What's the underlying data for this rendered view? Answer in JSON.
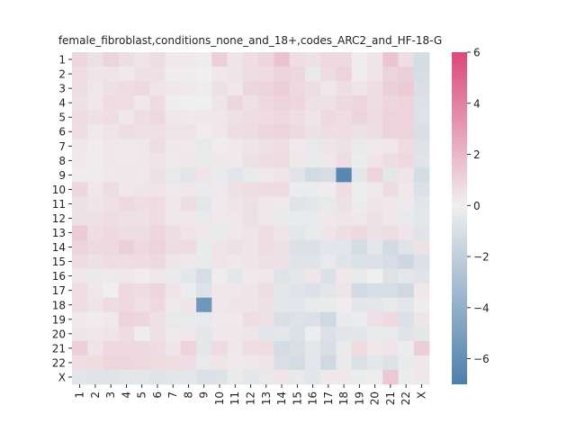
{
  "chart_data": {
    "type": "heatmap",
    "title": "female_fibroblast,conditions_none_and_18+,codes_ARC2_and_HF-18-G",
    "xlabel": "",
    "ylabel": "",
    "x_categories": [
      "1",
      "2",
      "3",
      "4",
      "5",
      "6",
      "7",
      "8",
      "9",
      "10",
      "11",
      "12",
      "13",
      "14",
      "15",
      "16",
      "17",
      "18",
      "19",
      "20",
      "21",
      "22",
      "X"
    ],
    "y_categories": [
      "1",
      "2",
      "3",
      "4",
      "5",
      "6",
      "7",
      "8",
      "9",
      "10",
      "11",
      "12",
      "13",
      "14",
      "15",
      "16",
      "17",
      "18",
      "19",
      "20",
      "21",
      "22",
      "X"
    ],
    "colorbar": {
      "vmin": -7,
      "vmax": 6,
      "ticks": [
        6,
        4,
        2,
        0,
        -2,
        -4,
        -6
      ],
      "tick_labels": [
        "6",
        "4",
        "2",
        "0",
        "−2",
        "−4",
        "−6"
      ],
      "colors": {
        "low": "#4c7fac",
        "mid": "#f0efef",
        "high": "#dc4877"
      }
    },
    "values": [
      [
        0.9,
        0.5,
        1.0,
        0.6,
        0.4,
        0.6,
        0.2,
        0.2,
        0.1,
        1.1,
        0.4,
        0.6,
        0.9,
        1.6,
        0.6,
        0.5,
        0.8,
        0.8,
        0.1,
        0.4,
        1.5,
        0.6,
        -1.2
      ],
      [
        0.6,
        0.4,
        0.4,
        0.2,
        0.5,
        0.5,
        0.1,
        0.1,
        0.0,
        0.3,
        0.4,
        0.6,
        0.7,
        1.0,
        0.9,
        -0.4,
        0.7,
        1.0,
        0.1,
        0.4,
        1.0,
        1.1,
        -1.1
      ],
      [
        0.6,
        0.3,
        0.5,
        0.7,
        0.8,
        0.4,
        0.3,
        0.2,
        0.1,
        0.5,
        0.3,
        0.9,
        1.0,
        1.2,
        0.8,
        0.6,
        0.3,
        0.6,
        0.4,
        0.6,
        1.1,
        1.3,
        -1.0
      ],
      [
        0.5,
        0.3,
        0.7,
        0.6,
        0.3,
        0.7,
        0.1,
        0.0,
        0.0,
        0.4,
        0.9,
        0.5,
        0.8,
        1.0,
        0.9,
        0.5,
        0.5,
        0.8,
        0.9,
        0.6,
        0.9,
        1.0,
        -0.9
      ],
      [
        0.7,
        0.5,
        0.6,
        0.3,
        0.6,
        0.8,
        0.3,
        0.2,
        0.3,
        0.3,
        0.5,
        0.6,
        0.7,
        0.8,
        0.6,
        0.4,
        0.8,
        0.6,
        1.0,
        0.7,
        1.0,
        1.0,
        -0.8
      ],
      [
        0.6,
        0.2,
        0.4,
        0.6,
        0.5,
        0.5,
        0.4,
        0.4,
        0.1,
        0.3,
        0.6,
        0.7,
        0.9,
        1.0,
        0.8,
        0.5,
        0.6,
        0.6,
        0.5,
        0.6,
        1.0,
        1.0,
        -1.0
      ],
      [
        0.3,
        0.1,
        0.3,
        0.2,
        0.3,
        0.6,
        0.3,
        0.2,
        -0.4,
        0.1,
        0.2,
        0.4,
        0.5,
        0.6,
        0.2,
        -0.4,
        0.4,
        0.5,
        -0.3,
        0.2,
        0.3,
        0.7,
        -0.8
      ],
      [
        0.2,
        0.1,
        0.3,
        0.2,
        0.3,
        0.4,
        0.2,
        0.3,
        -0.3,
        0.3,
        0.2,
        0.5,
        0.6,
        0.7,
        0.3,
        -0.3,
        0.3,
        0.6,
        -0.2,
        0.4,
        0.6,
        0.8,
        -0.7
      ],
      [
        0.1,
        0.1,
        0.2,
        0.3,
        0.2,
        0.5,
        -0.4,
        -0.6,
        0.4,
        -0.3,
        -0.6,
        -0.3,
        0.2,
        0.4,
        -0.7,
        -1.3,
        -1.1,
        -6.5,
        -0.5,
        1.0,
        -0.5,
        0.4,
        -1.2
      ],
      [
        0.9,
        0.3,
        0.6,
        0.3,
        0.4,
        0.4,
        0.2,
        0.3,
        -0.3,
        0.2,
        0.5,
        0.6,
        0.7,
        0.7,
        -0.2,
        -0.2,
        0.1,
        0.6,
        -0.1,
        0.2,
        0.7,
        0.3,
        -0.9
      ],
      [
        0.5,
        0.4,
        0.5,
        0.8,
        0.6,
        0.7,
        0.3,
        0.6,
        -0.5,
        0.2,
        0.4,
        0.5,
        0.3,
        0.2,
        -0.7,
        -0.5,
        -0.4,
        0.5,
        -0.2,
        0.4,
        0.3,
        0.2,
        -0.6
      ],
      [
        0.5,
        0.5,
        0.6,
        0.5,
        0.5,
        0.7,
        0.3,
        0.3,
        -0.4,
        0.2,
        0.3,
        0.5,
        0.3,
        -0.3,
        -0.3,
        -0.4,
        0.3,
        0.4,
        0.3,
        0.5,
        0.3,
        -0.4,
        -0.5
      ],
      [
        1.3,
        0.6,
        0.8,
        0.6,
        0.6,
        0.9,
        0.6,
        0.4,
        0.3,
        -0.3,
        0.3,
        0.4,
        0.6,
        0.4,
        -0.5,
        -0.3,
        0.4,
        0.6,
        0.8,
        0.5,
        0.6,
        0.4,
        -0.7
      ],
      [
        1.0,
        0.8,
        0.8,
        1.1,
        0.8,
        1.0,
        0.7,
        0.7,
        -0.3,
        0.4,
        0.5,
        0.4,
        0.6,
        0.5,
        -0.9,
        -0.9,
        -0.6,
        -0.6,
        -1.2,
        -0.5,
        -1.3,
        -0.7,
        0.5
      ],
      [
        0.7,
        0.5,
        0.7,
        0.6,
        0.7,
        0.8,
        0.4,
        0.3,
        -0.4,
        0.4,
        0.3,
        0.4,
        0.5,
        0.5,
        -0.7,
        -0.7,
        -0.4,
        -0.7,
        -0.9,
        -0.9,
        -1.1,
        -1.5,
        -0.9
      ],
      [
        0.3,
        -0.3,
        0.2,
        0.3,
        0.1,
        0.3,
        -0.3,
        -0.5,
        -1.1,
        0.1,
        -0.5,
        0.2,
        0.3,
        -0.7,
        -0.5,
        0.4,
        -0.9,
        0.3,
        -0.4,
        0.0,
        -0.8,
        -0.5,
        -0.7
      ],
      [
        0.6,
        0.3,
        0.0,
        0.8,
        0.7,
        0.9,
        0.4,
        -0.2,
        -0.8,
        0.3,
        0.3,
        0.4,
        0.6,
        -0.5,
        -0.7,
        -0.9,
        -0.6,
        0.4,
        -1.3,
        -1.1,
        -1.1,
        -1.4,
        0.3
      ],
      [
        0.6,
        0.4,
        0.7,
        0.8,
        0.5,
        0.8,
        0.2,
        0.4,
        -5.5,
        0.3,
        0.4,
        0.4,
        0.5,
        -0.5,
        -0.6,
        -0.3,
        -0.3,
        0.1,
        -0.6,
        -0.5,
        -0.4,
        -0.6,
        0.1
      ],
      [
        0.2,
        0.1,
        0.2,
        1.0,
        0.9,
        0.5,
        -0.4,
        -0.4,
        -0.4,
        0.2,
        0.2,
        0.6,
        0.5,
        -1.0,
        -0.8,
        -0.9,
        -1.4,
        -0.3,
        -0.2,
        0.5,
        0.8,
        -0.9,
        0.4
      ],
      [
        0.4,
        0.3,
        0.4,
        0.7,
        0.1,
        0.5,
        0.2,
        0.3,
        -0.5,
        0.3,
        0.3,
        0.4,
        -0.6,
        -0.5,
        -0.9,
        -0.1,
        -0.9,
        -0.6,
        -0.6,
        -0.3,
        -0.4,
        -0.7,
        -0.5
      ],
      [
        1.1,
        0.4,
        0.8,
        0.8,
        0.8,
        0.7,
        0.4,
        1.0,
        -0.5,
        0.7,
        0.3,
        0.6,
        0.6,
        -1.2,
        -1.0,
        -0.5,
        -1.0,
        -0.3,
        0.7,
        0.3,
        0.4,
        -0.2,
        1.2
      ],
      [
        0.6,
        0.7,
        0.9,
        0.9,
        0.8,
        0.7,
        0.6,
        0.6,
        -0.4,
        0.4,
        0.2,
        0.3,
        0.4,
        -1.0,
        -1.2,
        -0.5,
        -1.4,
        -0.4,
        -0.9,
        -0.5,
        -0.8,
        -0.3,
        0.3
      ],
      [
        -0.6,
        -0.7,
        -0.7,
        -0.5,
        -0.5,
        -0.7,
        -0.6,
        -0.5,
        -0.9,
        -0.8,
        -0.3,
        -0.5,
        -0.4,
        0.4,
        -0.4,
        -0.6,
        0.3,
        0.3,
        -0.2,
        -0.1,
        1.4,
        -0.2,
        0.3
      ]
    ]
  }
}
